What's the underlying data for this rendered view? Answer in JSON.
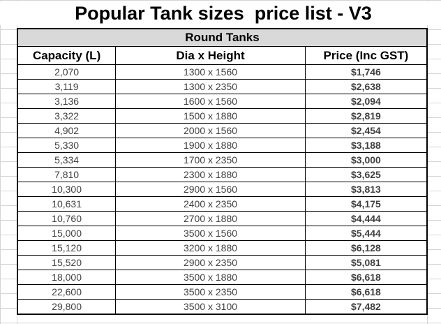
{
  "title": "Popular Tank sizes  price list - V3",
  "section_label": "Round Tanks",
  "columns": [
    "Capacity (L)",
    "Dia x Height",
    "Price (Inc GST)"
  ],
  "rows": [
    {
      "capacity": "2,070",
      "dimensions": "1300 x 1560",
      "price": "$1,746"
    },
    {
      "capacity": "3,119",
      "dimensions": "1300 x 2350",
      "price": "$2,638"
    },
    {
      "capacity": "3,136",
      "dimensions": "1600 x 1560",
      "price": "$2,094"
    },
    {
      "capacity": "3,322",
      "dimensions": "1500 x 1880",
      "price": "$2,819"
    },
    {
      "capacity": "4,902",
      "dimensions": "2000 x 1560",
      "price": "$2,454"
    },
    {
      "capacity": "5,330",
      "dimensions": "1900 x 1880",
      "price": "$3,188"
    },
    {
      "capacity": "5,334",
      "dimensions": "1700 x 2350",
      "price": "$3,000"
    },
    {
      "capacity": "7,810",
      "dimensions": "2300 x 1880",
      "price": "$3,625"
    },
    {
      "capacity": "10,300",
      "dimensions": "2900 x 1560",
      "price": "$3,813"
    },
    {
      "capacity": "10,631",
      "dimensions": "2400 x 2350",
      "price": "$4,175"
    },
    {
      "capacity": "10,760",
      "dimensions": "2700 x 1880",
      "price": "$4,444"
    },
    {
      "capacity": "15,000",
      "dimensions": "3500 x 1560",
      "price": "$5,444"
    },
    {
      "capacity": "15,120",
      "dimensions": "3200 x 1880",
      "price": "$6,128"
    },
    {
      "capacity": "15,520",
      "dimensions": "2900 x 2350",
      "price": "$5,081"
    },
    {
      "capacity": "18,000",
      "dimensions": "3500 x 1880",
      "price": "$6,618"
    },
    {
      "capacity": "22,600",
      "dimensions": "3500 x 2350",
      "price": "$6,618"
    },
    {
      "capacity": "29,800",
      "dimensions": "3500 x 3100",
      "price": "$7,482"
    }
  ]
}
